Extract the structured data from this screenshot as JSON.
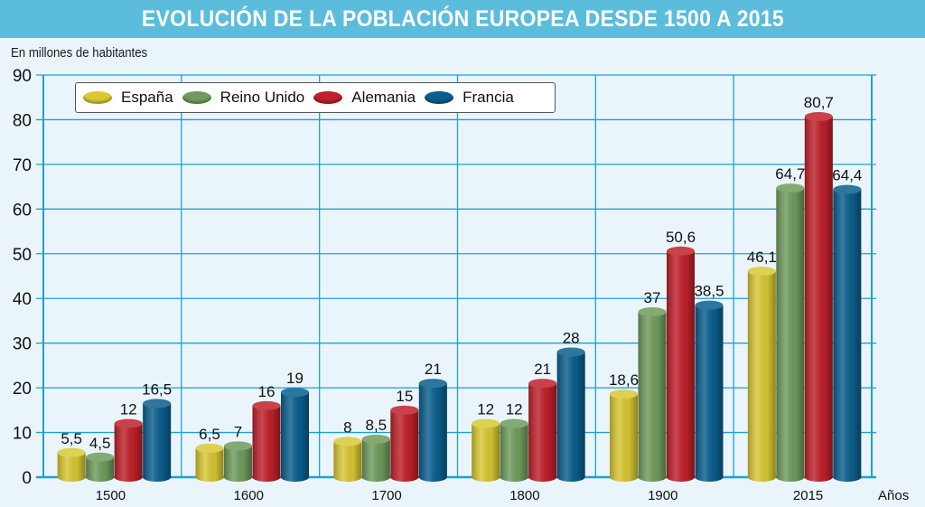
{
  "title": "EVOLUCIÓN DE LA POBLACIÓN EUROPEA DESDE 1500 A 2015",
  "colors": {
    "title_bar": "#5bbcdc",
    "grid": "#1ea0d2",
    "background": "#eaf5fb"
  },
  "chart_data": {
    "type": "bar",
    "title": "EVOLUCIÓN DE LA POBLACIÓN EUROPEA DESDE 1500 A 2015",
    "ylabel": "En millones de habitantes",
    "xlabel": "Años",
    "ylim": [
      0,
      90
    ],
    "yticks": [
      0,
      10,
      20,
      30,
      40,
      50,
      60,
      70,
      80,
      90
    ],
    "grid": true,
    "legend_position": "top-left",
    "categories": [
      "1500",
      "1600",
      "1700",
      "1800",
      "1900",
      "2015"
    ],
    "series": [
      {
        "name": "España",
        "color": "#d9c832",
        "values": [
          5.5,
          6.5,
          8,
          12,
          18.6,
          46.1
        ],
        "labels": [
          "5,5",
          "6,5",
          "8",
          "12",
          "18,6",
          "46,1"
        ]
      },
      {
        "name": "Reino Unido",
        "color": "#6f9c5c",
        "values": [
          4.5,
          7,
          8.5,
          12,
          37,
          64.7
        ],
        "labels": [
          "4,5",
          "7",
          "8,5",
          "12",
          "37",
          "64,7"
        ]
      },
      {
        "name": "Alemania",
        "color": "#c0202a",
        "values": [
          12,
          16,
          15,
          21,
          50.6,
          80.7
        ],
        "labels": [
          "12",
          "16",
          "15",
          "21",
          "50,6",
          "80,7"
        ]
      },
      {
        "name": "Francia",
        "color": "#0a5f8e",
        "values": [
          16.5,
          19,
          21,
          28,
          38.5,
          64.4
        ],
        "labels": [
          "16,5",
          "19",
          "21",
          "28",
          "38,5",
          "64,4"
        ]
      }
    ]
  }
}
